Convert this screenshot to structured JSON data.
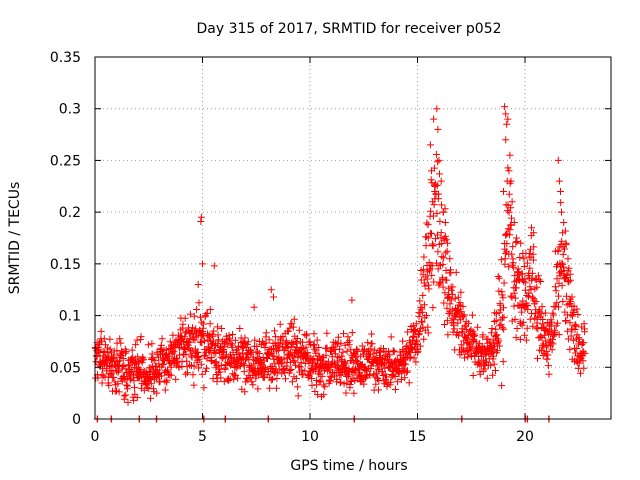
{
  "chart_data": {
    "type": "scatter",
    "title": "Day 315 of 2017, SRMTID for receiver p052",
    "xlabel": "GPS time / hours",
    "ylabel": "SRMTID / TECUs",
    "xlim": [
      0,
      24
    ],
    "ylim": [
      0,
      0.35
    ],
    "xticks": [
      0,
      5,
      10,
      15,
      20
    ],
    "xtick_labels": [
      "0",
      "5",
      "10",
      "15",
      "20"
    ],
    "yticks": [
      0,
      0.05,
      0.1,
      0.15,
      0.2,
      0.25,
      0.3,
      0.35
    ],
    "ytick_labels": [
      "0",
      "0.05",
      "0.1",
      "0.15",
      "0.2",
      "0.25",
      "0.3",
      "0.35"
    ],
    "grid": true,
    "marker": "+",
    "color": "#ff0000",
    "series": [
      {
        "name": "SRMTID",
        "profile": [
          [
            0.0,
            0.06,
            0.02
          ],
          [
            0.5,
            0.055,
            0.02
          ],
          [
            1.0,
            0.05,
            0.025
          ],
          [
            1.5,
            0.045,
            0.025
          ],
          [
            2.0,
            0.05,
            0.025
          ],
          [
            2.5,
            0.045,
            0.02
          ],
          [
            3.0,
            0.05,
            0.022
          ],
          [
            3.5,
            0.055,
            0.022
          ],
          [
            4.0,
            0.065,
            0.025
          ],
          [
            4.5,
            0.075,
            0.03
          ],
          [
            5.0,
            0.075,
            0.03
          ],
          [
            5.5,
            0.07,
            0.028
          ],
          [
            6.0,
            0.065,
            0.025
          ],
          [
            6.5,
            0.06,
            0.022
          ],
          [
            7.0,
            0.055,
            0.022
          ],
          [
            7.5,
            0.055,
            0.022
          ],
          [
            8.0,
            0.06,
            0.025
          ],
          [
            8.5,
            0.062,
            0.025
          ],
          [
            9.0,
            0.065,
            0.025
          ],
          [
            9.5,
            0.06,
            0.025
          ],
          [
            10.0,
            0.055,
            0.025
          ],
          [
            10.5,
            0.05,
            0.022
          ],
          [
            11.0,
            0.055,
            0.022
          ],
          [
            11.5,
            0.055,
            0.022
          ],
          [
            12.0,
            0.055,
            0.022
          ],
          [
            12.5,
            0.052,
            0.02
          ],
          [
            13.0,
            0.055,
            0.02
          ],
          [
            13.5,
            0.05,
            0.02
          ],
          [
            14.0,
            0.05,
            0.018
          ],
          [
            14.5,
            0.06,
            0.02
          ],
          [
            15.0,
            0.075,
            0.025
          ],
          [
            15.5,
            0.14,
            0.06
          ],
          [
            15.8,
            0.2,
            0.07
          ],
          [
            16.0,
            0.18,
            0.07
          ],
          [
            16.3,
            0.14,
            0.05
          ],
          [
            16.6,
            0.11,
            0.035
          ],
          [
            17.0,
            0.09,
            0.03
          ],
          [
            17.5,
            0.075,
            0.022
          ],
          [
            18.0,
            0.065,
            0.02
          ],
          [
            18.5,
            0.06,
            0.02
          ],
          [
            19.0,
            0.12,
            0.06
          ],
          [
            19.2,
            0.21,
            0.07
          ],
          [
            19.5,
            0.14,
            0.05
          ],
          [
            19.8,
            0.11,
            0.04
          ],
          [
            20.0,
            0.12,
            0.045
          ],
          [
            20.3,
            0.14,
            0.04
          ],
          [
            20.6,
            0.1,
            0.035
          ],
          [
            21.0,
            0.07,
            0.025
          ],
          [
            21.3,
            0.08,
            0.03
          ],
          [
            21.6,
            0.15,
            0.055
          ],
          [
            21.9,
            0.13,
            0.05
          ],
          [
            22.2,
            0.09,
            0.035
          ],
          [
            22.5,
            0.07,
            0.025
          ],
          [
            22.8,
            0.065,
            0.02
          ]
        ],
        "peaks": [
          [
            4.95,
            0.195
          ],
          [
            4.92,
            0.191
          ],
          [
            5.55,
            0.148
          ],
          [
            5.0,
            0.15
          ],
          [
            4.8,
            0.13
          ],
          [
            8.2,
            0.125
          ],
          [
            8.3,
            0.118
          ],
          [
            11.95,
            0.115
          ],
          [
            7.4,
            0.108
          ],
          [
            15.6,
            0.265
          ],
          [
            15.75,
            0.29
          ],
          [
            15.9,
            0.3
          ],
          [
            15.95,
            0.28
          ],
          [
            16.0,
            0.25
          ],
          [
            15.65,
            0.24
          ],
          [
            16.1,
            0.23
          ],
          [
            15.8,
            0.22
          ],
          [
            15.7,
            0.21
          ],
          [
            16.2,
            0.2
          ],
          [
            16.4,
            0.17
          ],
          [
            16.5,
            0.155
          ],
          [
            16.3,
            0.19
          ],
          [
            15.5,
            0.175
          ],
          [
            19.05,
            0.302
          ],
          [
            19.1,
            0.295
          ],
          [
            19.15,
            0.285
          ],
          [
            19.2,
            0.29
          ],
          [
            19.1,
            0.27
          ],
          [
            19.3,
            0.255
          ],
          [
            19.25,
            0.24
          ],
          [
            19.35,
            0.23
          ],
          [
            19.0,
            0.22
          ],
          [
            19.4,
            0.21
          ],
          [
            19.5,
            0.19
          ],
          [
            19.6,
            0.175
          ],
          [
            19.8,
            0.17
          ],
          [
            19.9,
            0.16
          ],
          [
            20.3,
            0.185
          ],
          [
            20.4,
            0.18
          ],
          [
            20.2,
            0.16
          ],
          [
            21.55,
            0.25
          ],
          [
            21.6,
            0.23
          ],
          [
            21.65,
            0.22
          ],
          [
            21.7,
            0.2
          ],
          [
            21.8,
            0.19
          ],
          [
            21.9,
            0.17
          ],
          [
            22.0,
            0.155
          ],
          [
            21.75,
            0.18
          ],
          [
            22.1,
            0.14
          ]
        ],
        "zeros": [
          0.1,
          0.75,
          2.05,
          2.85,
          5.05,
          6.05,
          8.05,
          12.05,
          17.05,
          20.0,
          20.1,
          21.1
        ]
      }
    ]
  }
}
